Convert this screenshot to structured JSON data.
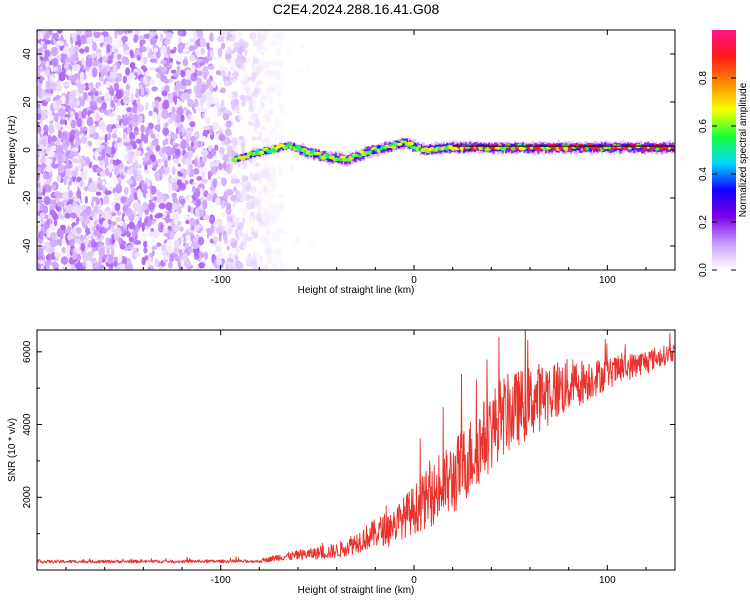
{
  "chart_data": [
    {
      "type": "heatmap",
      "title": "C2E4.2024.288.16.41.G08",
      "xlabel": "Height of straight line (km)",
      "ylabel": "Frequency (Hz)",
      "xlim": [
        -195,
        135
      ],
      "ylim": [
        -50,
        50
      ],
      "xticks": [
        -100,
        0,
        100
      ],
      "yticks": [
        -40,
        -20,
        0,
        20,
        40
      ],
      "colorbar": {
        "label": "Normalized spectral amplitude",
        "range": [
          0,
          1
        ],
        "ticks": [
          0.0,
          0.2,
          0.4,
          0.6,
          0.8
        ],
        "colormap": [
          "#ffffff",
          "#c89bff",
          "#7a00e6",
          "#1400ff",
          "#00d8ff",
          "#18ff3a",
          "#f6ff00",
          "#ff8a00",
          "#ff1a1a",
          "#ff148c"
        ]
      },
      "ridge_line": {
        "description": "spectral peak near 0 Hz",
        "x": [
          -93,
          -85,
          -75,
          -65,
          -55,
          -45,
          -35,
          -25,
          -15,
          -5,
          5,
          15,
          30,
          50,
          70,
          90,
          110,
          135
        ],
        "y": [
          -4,
          -2,
          0,
          2,
          -1,
          -3,
          -4,
          -1,
          1,
          3,
          0,
          1,
          1,
          1,
          1,
          1,
          1,
          1
        ],
        "peak_amplitude_from_x": 20,
        "noise_region_end": -80
      }
    },
    {
      "type": "line",
      "xlabel": "Height of straight line (km)",
      "ylabel": "SNR (10 * v/v)",
      "xlim": [
        -195,
        135
      ],
      "ylim": [
        0,
        6600
      ],
      "xticks": [
        -100,
        0,
        100
      ],
      "yticks": [
        2000,
        4000,
        6000
      ],
      "color": "#e8322c",
      "trend": {
        "x": [
          -195,
          -80,
          -70,
          -40,
          -10,
          20,
          45,
          70,
          100,
          135
        ],
        "y": [
          230,
          240,
          350,
          520,
          1250,
          2500,
          4200,
          4900,
          5400,
          6000
        ]
      },
      "fluctuation": {
        "x": [
          -195,
          -80,
          -70,
          -40,
          -10,
          20,
          45,
          70,
          100,
          135
        ],
        "y": [
          60,
          60,
          140,
          300,
          700,
          1500,
          1600,
          1300,
          600,
          350
        ]
      }
    }
  ]
}
